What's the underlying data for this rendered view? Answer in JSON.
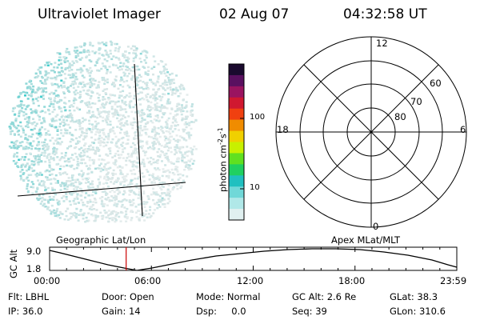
{
  "header": {
    "title": "Ultraviolet Imager",
    "date": "02 Aug 07",
    "time": "04:32:58 UT"
  },
  "colorbar": {
    "unit_label": "photon cm",
    "unit_exp1": "-2",
    "unit_mid": "s",
    "unit_exp2": "-1",
    "tick_100": "100",
    "tick_10": "10",
    "colors": [
      "#1a0a2e",
      "#5a1060",
      "#9a1460",
      "#d01830",
      "#f04010",
      "#f08c00",
      "#f0d000",
      "#c8f000",
      "#60e020",
      "#20d060",
      "#20c0c0",
      "#70d8d8",
      "#b0e8e8",
      "#e0f0f0"
    ]
  },
  "polar": {
    "mlt_12": "12",
    "mlt_18": "18",
    "mlt_6": "6",
    "mlt_0": "0",
    "lat_60": "60",
    "lat_70": "70",
    "lat_80": "80"
  },
  "timeline": {
    "axis_label": "GC Alt",
    "y_top": "9.0",
    "y_bottom": "1.8",
    "left_label": "Geographic Lat/Lon",
    "right_label": "Apex MLat/MLT",
    "ticks": [
      "00:00",
      "06:00",
      "12:00",
      "18:00",
      "23:59"
    ],
    "marker_time_fraction": 0.188,
    "marker_color": "#cc0000"
  },
  "footer": {
    "flt": "Flt: LBHL",
    "door": "Door: Open",
    "mode": "Mode: Normal",
    "gc_alt": "GC Alt: 2.6 Re",
    "glat": "GLat:  38.3",
    "ip": "IP: 36.0",
    "gain": "Gain: 14",
    "dsp": "Dsp:     0.0",
    "seq": "Seq: 39",
    "glon": "GLon: 310.6"
  }
}
